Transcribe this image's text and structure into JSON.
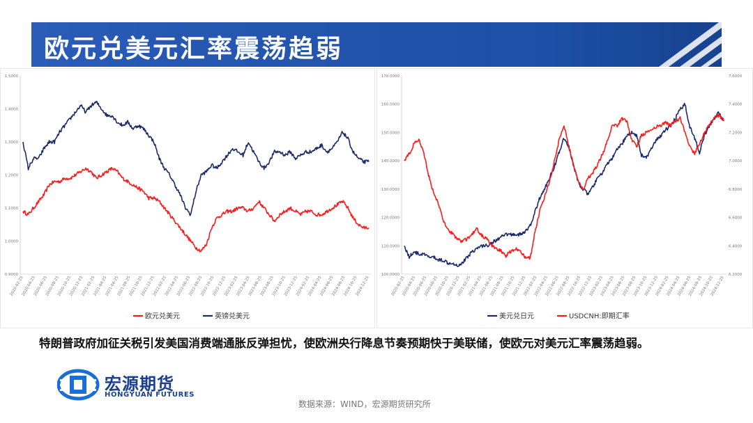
{
  "title": "欧元兑美元汇率震荡趋弱",
  "caption": "特朗普政府加征关税引发美国消费端通胀反弹担忧，使欧洲央行降息节奏预期快于美联储，使欧元对美元汇率震荡趋弱。",
  "logo": {
    "name_cn": "宏源期货",
    "name_en": "HONGYUAN FUTURES"
  },
  "source": "数据来源：WIND，宏源期货研究所",
  "colors": {
    "title_bar": "#1d4fa6",
    "red": "#ff1a1a",
    "navy": "#1a2a6c"
  },
  "chart_data": [
    {
      "type": "line",
      "ylim": [
        0.9,
        1.5
      ],
      "y_ticks": [
        "0.9000",
        "1.0000",
        "1.1000",
        "1.2000",
        "1.3000",
        "1.4000",
        "1.5000"
      ],
      "x_ticks": [
        "2020-02-25",
        "2020-04-25",
        "2020-06-25",
        "2020-08-25",
        "2020-10-25",
        "2020-12-25",
        "2021-02-25",
        "2021-04-25",
        "2021-06-25",
        "2021-08-25",
        "2021-10-25",
        "2021-12-25",
        "2022-02-25",
        "2022-04-25",
        "2022-06-25",
        "2022-08-25",
        "2022-10-25",
        "2022-12-25",
        "2023-02-25",
        "2023-04-25",
        "2023-06-25",
        "2023-08-25",
        "2023-10-25",
        "2023-12-25",
        "2024-02-25",
        "2024-04-25",
        "2024-06-25",
        "2024-08-25",
        "2024-10-25",
        "2024-12-25"
      ],
      "legend_position": "bottom",
      "series": [
        {
          "name": "欧元兑美元",
          "color": "#ff1a1a",
          "axis": "left",
          "values": [
            1.09,
            1.08,
            1.1,
            1.12,
            1.14,
            1.17,
            1.18,
            1.18,
            1.19,
            1.19,
            1.2,
            1.21,
            1.22,
            1.21,
            1.19,
            1.2,
            1.21,
            1.22,
            1.21,
            1.19,
            1.18,
            1.17,
            1.16,
            1.15,
            1.13,
            1.13,
            1.12,
            1.1,
            1.08,
            1.06,
            1.04,
            1.02,
            1.0,
            0.98,
            0.97,
            0.99,
            1.04,
            1.07,
            1.08,
            1.09,
            1.09,
            1.1,
            1.1,
            1.09,
            1.1,
            1.12,
            1.1,
            1.08,
            1.06,
            1.08,
            1.09,
            1.1,
            1.09,
            1.08,
            1.09,
            1.09,
            1.08,
            1.08,
            1.09,
            1.1,
            1.11,
            1.12,
            1.1,
            1.07,
            1.05,
            1.04,
            1.04
          ]
        },
        {
          "name": "英镑兑美元",
          "color": "#1a2a6c",
          "axis": "left",
          "values": [
            1.3,
            1.22,
            1.25,
            1.25,
            1.28,
            1.3,
            1.3,
            1.33,
            1.35,
            1.37,
            1.39,
            1.41,
            1.39,
            1.41,
            1.42,
            1.4,
            1.38,
            1.38,
            1.36,
            1.35,
            1.36,
            1.34,
            1.35,
            1.34,
            1.32,
            1.3,
            1.25,
            1.22,
            1.2,
            1.17,
            1.14,
            1.1,
            1.08,
            1.15,
            1.2,
            1.21,
            1.23,
            1.22,
            1.24,
            1.26,
            1.28,
            1.27,
            1.26,
            1.3,
            1.27,
            1.24,
            1.22,
            1.24,
            1.27,
            1.27,
            1.26,
            1.27,
            1.25,
            1.26,
            1.27,
            1.27,
            1.28,
            1.29,
            1.27,
            1.28,
            1.3,
            1.33,
            1.31,
            1.27,
            1.25,
            1.24,
            1.24
          ]
        }
      ]
    },
    {
      "type": "line",
      "ylim": [
        100,
        170
      ],
      "y2lim": [
        6.2,
        7.6
      ],
      "y_ticks": [
        "100.0000",
        "110.0000",
        "120.0000",
        "130.0000",
        "140.0000",
        "150.0000",
        "160.0000",
        "170.0000"
      ],
      "y2_ticks": [
        "6.2000",
        "6.4000",
        "6.6000",
        "6.8000",
        "7.0000",
        "7.2000",
        "7.4000",
        "7.6000"
      ],
      "x_ticks": [
        "2020-02-25",
        "2020-04-25",
        "2020-06-25",
        "2020-08-25",
        "2020-10-25",
        "2020-12-25",
        "2021-02-25",
        "2021-04-25",
        "2021-06-25",
        "2021-08-25",
        "2021-10-25",
        "2021-12-25",
        "2022-02-25",
        "2022-04-25",
        "2022-06-25",
        "2022-08-25",
        "2022-10-25",
        "2022-12-25",
        "2023-02-25",
        "2023-04-25",
        "2023-06-25",
        "2023-08-25",
        "2023-10-25",
        "2023-12-25",
        "2024-02-25",
        "2024-04-25",
        "2024-06-25",
        "2024-08-25",
        "2024-10-25",
        "2024-12-25"
      ],
      "legend_position": "bottom",
      "series": [
        {
          "name": "美元兑日元",
          "color": "#1a2a6c",
          "axis": "left",
          "values": [
            110,
            106,
            108,
            107,
            107,
            106,
            106,
            105,
            105,
            104,
            104,
            103,
            104,
            106,
            108,
            109,
            110,
            110,
            111,
            112,
            113,
            114,
            114,
            114,
            114,
            115,
            117,
            122,
            127,
            130,
            134,
            138,
            143,
            148,
            145,
            138,
            132,
            130,
            128,
            131,
            134,
            136,
            139,
            141,
            144,
            146,
            149,
            150,
            149,
            142,
            141,
            144,
            147,
            149,
            151,
            152,
            155,
            158,
            160,
            152,
            148,
            143,
            149,
            152,
            155,
            157,
            154
          ]
        },
        {
          "name": "USDCNH:即期汇率",
          "color": "#ff1a1a",
          "axis": "right",
          "values": [
            7.0,
            7.05,
            7.12,
            7.15,
            7.05,
            6.9,
            6.78,
            6.7,
            6.58,
            6.52,
            6.48,
            6.45,
            6.43,
            6.45,
            6.48,
            6.52,
            6.47,
            6.45,
            6.4,
            6.38,
            6.36,
            6.33,
            6.36,
            6.38,
            6.36,
            6.32,
            6.31,
            6.5,
            6.65,
            6.75,
            6.85,
            7.0,
            7.15,
            7.25,
            7.1,
            6.96,
            6.85,
            6.8,
            6.88,
            6.92,
            6.98,
            7.05,
            7.15,
            7.25,
            7.25,
            7.3,
            7.28,
            7.15,
            7.1,
            7.18,
            7.2,
            7.22,
            7.24,
            7.25,
            7.27,
            7.25,
            7.28,
            7.3,
            7.2,
            7.1,
            7.05,
            7.12,
            7.2,
            7.25,
            7.3,
            7.32,
            7.28
          ]
        }
      ]
    }
  ]
}
